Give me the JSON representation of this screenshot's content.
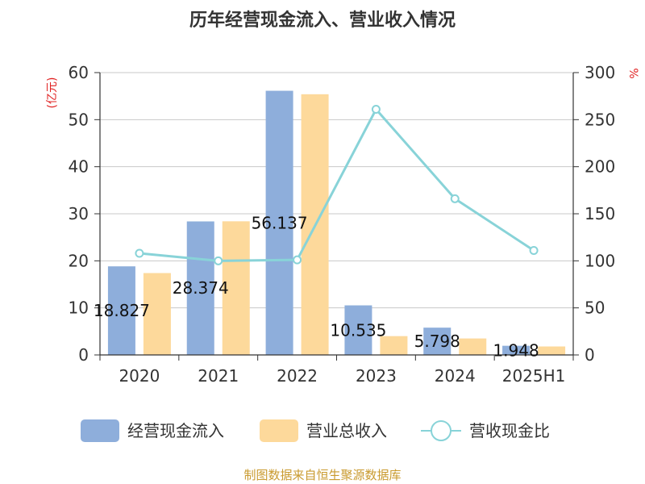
{
  "chart_data": {
    "type": "bar",
    "title": "历年经营现金流入、营业收入情况",
    "y_left_unit": "(亿元)",
    "y_right_unit": "%",
    "categories": [
      "2020",
      "2021",
      "2022",
      "2023",
      "2024",
      "2025H1"
    ],
    "y_left_ticks": [
      "0",
      "10",
      "20",
      "30",
      "40",
      "50",
      "60"
    ],
    "y_right_ticks": [
      "0",
      "50",
      "100",
      "150",
      "200",
      "250",
      "300"
    ],
    "ylim_left": [
      0,
      60
    ],
    "ylim_right": [
      0,
      300
    ],
    "grid": true,
    "legend_position": "bottom",
    "series": [
      {
        "name": "经营现金流入",
        "kind": "bar",
        "axis": "left",
        "color": "#8eaedb",
        "values": [
          18.827,
          28.374,
          56.137,
          10.535,
          5.798,
          1.948
        ],
        "labels": [
          "18.827",
          "28.374",
          "56.137",
          "10.535",
          "5.798",
          "1.948"
        ]
      },
      {
        "name": "营业总收入",
        "kind": "bar",
        "axis": "left",
        "color": "#fdd99b",
        "values": [
          17.4,
          28.4,
          55.4,
          4.0,
          3.5,
          1.8
        ]
      },
      {
        "name": "营收现金比",
        "kind": "line",
        "axis": "right",
        "color": "#88d3d8",
        "values": [
          108,
          100,
          101,
          261,
          166,
          111
        ]
      }
    ]
  },
  "source": "制图数据来自恒生聚源数据库"
}
